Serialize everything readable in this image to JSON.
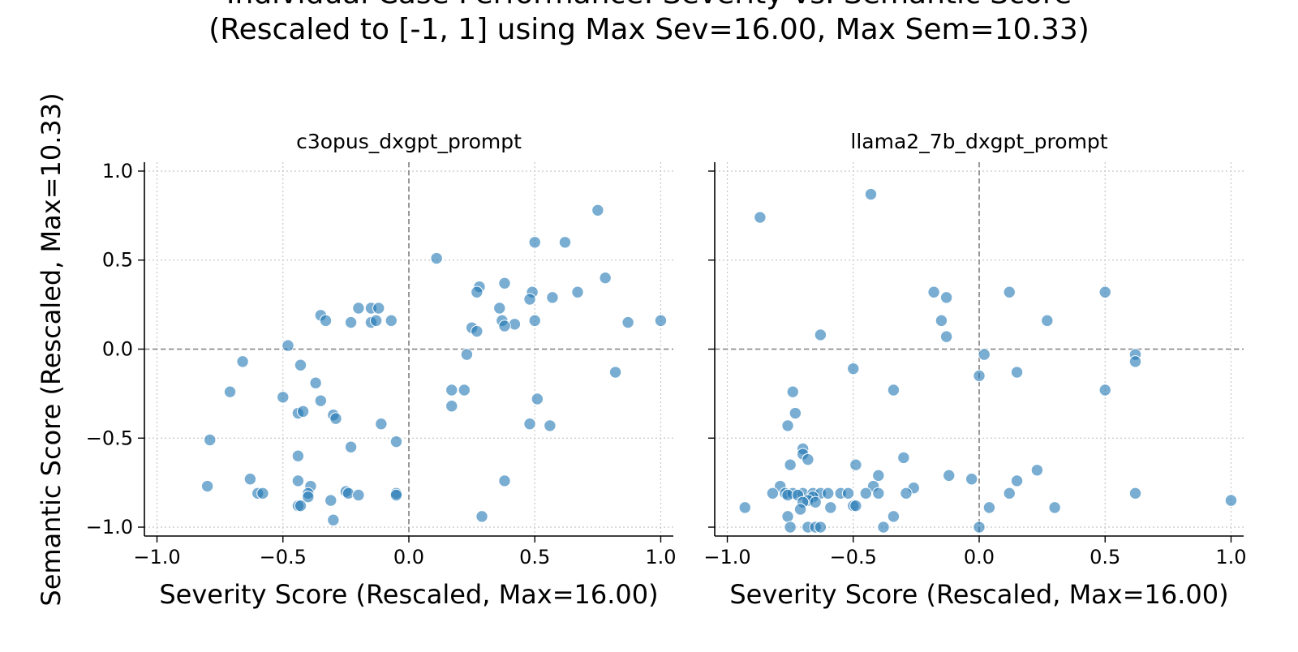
{
  "figure": {
    "title_line1": "Individual Case Performance: Severity vs. Semantic Score",
    "title_line2": "(Rescaled to [-1, 1] using Max Sev=16.00, Max Sem=10.33)",
    "ylabel": "Semantic Score (Rescaled, Max=10.33)"
  },
  "colors": {
    "point": "#1f77b4",
    "point_edge": "#ffffff",
    "grid": "#c8c8c8",
    "zero_line": "#808080",
    "axis": "#000000"
  },
  "chart_data": [
    {
      "type": "scatter",
      "title": "c3opus_dxgpt_prompt",
      "xlabel": "Severity Score (Rescaled, Max=16.00)",
      "ylabel": "Semantic Score (Rescaled, Max=10.33)",
      "xlim": [
        -1.05,
        1.05
      ],
      "ylim": [
        -1.05,
        1.05
      ],
      "xticks": [
        -1.0,
        -0.5,
        0.0,
        0.5,
        1.0
      ],
      "yticks": [
        -1.0,
        -0.5,
        0.0,
        0.5,
        1.0
      ],
      "xtick_labels": [
        "−1.0",
        "−0.5",
        "0.0",
        "0.5",
        "1.0"
      ],
      "ytick_labels": [
        "−1.0",
        "−0.5",
        "0.0",
        "0.5",
        "1.0"
      ],
      "grid": true,
      "reference_lines": {
        "x": 0,
        "y": 0
      },
      "points": [
        [
          0.75,
          0.78
        ],
        [
          0.11,
          0.51
        ],
        [
          0.5,
          0.6
        ],
        [
          0.62,
          0.6
        ],
        [
          0.78,
          0.4
        ],
        [
          0.67,
          0.32
        ],
        [
          0.38,
          0.37
        ],
        [
          0.28,
          0.35
        ],
        [
          0.27,
          0.32
        ],
        [
          0.49,
          0.32
        ],
        [
          0.48,
          0.28
        ],
        [
          0.57,
          0.29
        ],
        [
          0.36,
          0.23
        ],
        [
          0.37,
          0.16
        ],
        [
          0.42,
          0.14
        ],
        [
          0.38,
          0.13
        ],
        [
          0.5,
          0.16
        ],
        [
          0.25,
          0.12
        ],
        [
          0.27,
          0.1
        ],
        [
          0.87,
          0.15
        ],
        [
          1.0,
          0.16
        ],
        [
          0.82,
          -0.13
        ],
        [
          0.23,
          -0.03
        ],
        [
          0.17,
          -0.23
        ],
        [
          0.22,
          -0.23
        ],
        [
          0.17,
          -0.32
        ],
        [
          0.51,
          -0.28
        ],
        [
          0.48,
          -0.42
        ],
        [
          0.56,
          -0.43
        ],
        [
          0.38,
          -0.74
        ],
        [
          0.29,
          -0.94
        ],
        [
          -0.35,
          0.19
        ],
        [
          -0.33,
          0.16
        ],
        [
          -0.2,
          0.23
        ],
        [
          -0.15,
          0.23
        ],
        [
          -0.12,
          0.23
        ],
        [
          -0.23,
          0.15
        ],
        [
          -0.15,
          0.15
        ],
        [
          -0.13,
          0.16
        ],
        [
          -0.07,
          0.16
        ],
        [
          -0.48,
          0.02
        ],
        [
          -0.66,
          -0.07
        ],
        [
          -0.43,
          -0.09
        ],
        [
          -0.71,
          -0.24
        ],
        [
          -0.37,
          -0.19
        ],
        [
          -0.5,
          -0.27
        ],
        [
          -0.35,
          -0.29
        ],
        [
          -0.44,
          -0.36
        ],
        [
          -0.42,
          -0.35
        ],
        [
          -0.3,
          -0.37
        ],
        [
          -0.29,
          -0.39
        ],
        [
          -0.11,
          -0.42
        ],
        [
          -0.05,
          -0.52
        ],
        [
          -0.79,
          -0.51
        ],
        [
          -0.23,
          -0.55
        ],
        [
          -0.44,
          -0.6
        ],
        [
          -0.63,
          -0.73
        ],
        [
          -0.44,
          -0.74
        ],
        [
          -0.39,
          -0.77
        ],
        [
          -0.8,
          -0.77
        ],
        [
          -0.6,
          -0.81
        ],
        [
          -0.58,
          -0.81
        ],
        [
          -0.4,
          -0.81
        ],
        [
          -0.4,
          -0.83
        ],
        [
          -0.25,
          -0.8
        ],
        [
          -0.24,
          -0.81
        ],
        [
          -0.2,
          -0.82
        ],
        [
          -0.05,
          -0.81
        ],
        [
          -0.05,
          -0.82
        ],
        [
          -0.31,
          -0.85
        ],
        [
          -0.44,
          -0.88
        ],
        [
          -0.43,
          -0.88
        ],
        [
          -0.3,
          -0.96
        ]
      ]
    },
    {
      "type": "scatter",
      "title": "llama2_7b_dxgpt_prompt",
      "xlabel": "Severity Score (Rescaled, Max=16.00)",
      "xlim": [
        -1.05,
        1.05
      ],
      "ylim": [
        -1.05,
        1.05
      ],
      "xticks": [
        -1.0,
        -0.5,
        0.0,
        0.5,
        1.0
      ],
      "yticks": [
        -1.0,
        -0.5,
        0.0,
        0.5,
        1.0
      ],
      "xtick_labels": [
        "−1.0",
        "−0.5",
        "0.0",
        "0.5",
        "1.0"
      ],
      "grid": true,
      "reference_lines": {
        "x": 0,
        "y": 0
      },
      "points": [
        [
          -0.43,
          0.87
        ],
        [
          -0.87,
          0.74
        ],
        [
          -0.18,
          0.32
        ],
        [
          -0.13,
          0.29
        ],
        [
          0.12,
          0.32
        ],
        [
          0.5,
          0.32
        ],
        [
          -0.15,
          0.16
        ],
        [
          0.27,
          0.16
        ],
        [
          -0.13,
          0.07
        ],
        [
          -0.63,
          0.08
        ],
        [
          0.02,
          -0.03
        ],
        [
          0.62,
          -0.03
        ],
        [
          0.62,
          -0.07
        ],
        [
          -0.5,
          -0.11
        ],
        [
          0.0,
          -0.15
        ],
        [
          0.15,
          -0.13
        ],
        [
          -0.34,
          -0.23
        ],
        [
          0.5,
          -0.23
        ],
        [
          -0.74,
          -0.24
        ],
        [
          -0.73,
          -0.36
        ],
        [
          -0.76,
          -0.43
        ],
        [
          -0.7,
          -0.56
        ],
        [
          -0.7,
          -0.59
        ],
        [
          -0.68,
          -0.62
        ],
        [
          -0.3,
          -0.61
        ],
        [
          -0.75,
          -0.65
        ],
        [
          -0.49,
          -0.65
        ],
        [
          -0.4,
          -0.71
        ],
        [
          -0.12,
          -0.71
        ],
        [
          -0.03,
          -0.73
        ],
        [
          0.23,
          -0.68
        ],
        [
          0.15,
          -0.74
        ],
        [
          -0.79,
          -0.77
        ],
        [
          -0.42,
          -0.77
        ],
        [
          -0.26,
          -0.78
        ],
        [
          -0.82,
          -0.81
        ],
        [
          -0.77,
          -0.81
        ],
        [
          -0.74,
          -0.81
        ],
        [
          -0.7,
          -0.81
        ],
        [
          -0.66,
          -0.81
        ],
        [
          -0.63,
          -0.81
        ],
        [
          -0.6,
          -0.81
        ],
        [
          -0.55,
          -0.81
        ],
        [
          -0.52,
          -0.81
        ],
        [
          -0.45,
          -0.81
        ],
        [
          -0.4,
          -0.81
        ],
        [
          -0.29,
          -0.81
        ],
        [
          0.12,
          -0.81
        ],
        [
          0.62,
          -0.81
        ],
        [
          -0.76,
          -0.82
        ],
        [
          -0.72,
          -0.82
        ],
        [
          -0.66,
          -0.83
        ],
        [
          -0.68,
          -0.85
        ],
        [
          -0.7,
          -0.86
        ],
        [
          -0.65,
          -0.86
        ],
        [
          -0.5,
          -0.88
        ],
        [
          -0.49,
          -0.88
        ],
        [
          -0.59,
          -0.89
        ],
        [
          -0.71,
          -0.9
        ],
        [
          -0.93,
          -0.89
        ],
        [
          0.04,
          -0.89
        ],
        [
          0.3,
          -0.89
        ],
        [
          1.0,
          -0.85
        ],
        [
          -0.34,
          -0.94
        ],
        [
          -0.76,
          -0.94
        ],
        [
          -0.75,
          -1.0
        ],
        [
          -0.68,
          -1.0
        ],
        [
          -0.65,
          -1.0
        ],
        [
          -0.63,
          -1.0
        ],
        [
          -0.38,
          -1.0
        ],
        [
          0.0,
          -1.0
        ]
      ]
    }
  ]
}
